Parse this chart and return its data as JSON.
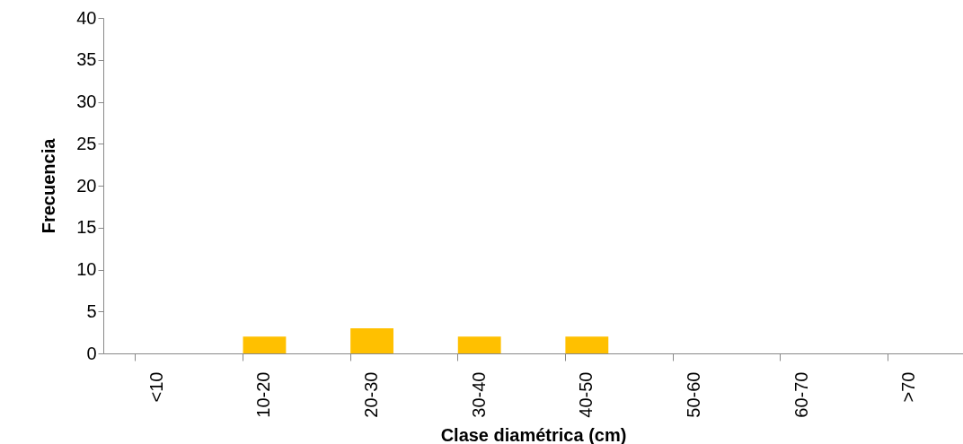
{
  "chart_data": {
    "type": "bar",
    "xlabel": "Clase diamétrica (cm)",
    "ylabel": "Frecuencia",
    "categories": [
      "<10",
      "10-20",
      "20-30",
      "30-40",
      "40-50",
      "50-60",
      "60-70",
      ">70"
    ],
    "values": [
      0,
      2,
      3,
      2,
      2,
      0,
      0,
      0
    ],
    "color": "#ffc000",
    "ylim": [
      0,
      40
    ],
    "yticks": [
      0,
      5,
      10,
      15,
      20,
      25,
      30,
      35,
      40
    ],
    "grid": false
  }
}
